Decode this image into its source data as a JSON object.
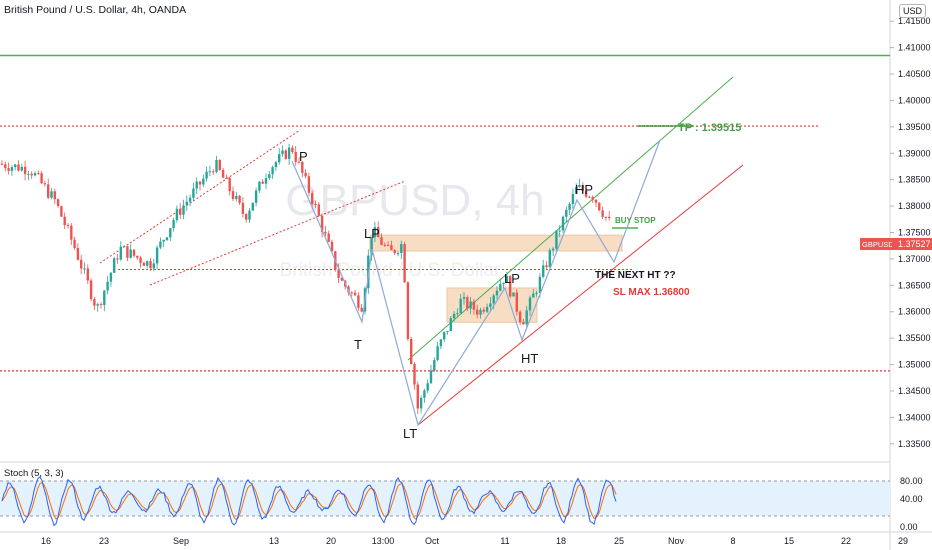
{
  "header": {
    "title": "British Pound / U.S. Dollar, 4h, OANDA",
    "currency": "USD",
    "watermark_symbol": "GBPUSD, 4h",
    "watermark_name": "British Pound / U.S. Dollar"
  },
  "price_axis": {
    "labels": [
      "1.41500",
      "1.41000",
      "1.40500",
      "1.40000",
      "1.39500",
      "1.39000",
      "1.38500",
      "1.38000",
      "1.37500",
      "1.37000",
      "1.36500",
      "1.36000",
      "1.35500",
      "1.35000",
      "1.34500",
      "1.34000",
      "1.33500"
    ],
    "last_price": "1.37527",
    "last_symbol": "GBPUSD"
  },
  "time_axis": {
    "labels": [
      "16",
      "23",
      "Sep",
      "13",
      "20",
      "13:00",
      "Oct",
      "11",
      "18",
      "25",
      "Nov",
      "8",
      "15",
      "22",
      "29"
    ]
  },
  "annotations": {
    "P": "P",
    "T": "T",
    "LP1": "LP",
    "LT": "LT",
    "LP2": "LP",
    "HT": "HT",
    "HP": "HP",
    "tp": "TP : 1.39515",
    "buy_stop": "BUY STOP",
    "next_ht": "THE NEXT HT ??",
    "sl": "SL MAX 1.36800"
  },
  "stoch": {
    "title": "Stoch (5, 3, 3)",
    "labels": [
      "80.00",
      "40.00",
      "0.00"
    ]
  },
  "colors": {
    "up": "#26a69a",
    "down": "#ef5350",
    "green_line": "#4caf50",
    "red_dotted": "#e53935",
    "blue_path": "#90a8d8",
    "zone_fill": "#f5d5b5",
    "stoch_k": "#2962ff",
    "stoch_d": "#ff6d00",
    "stoch_band": "#e3f2fd"
  },
  "chart_data": {
    "type": "candlestick",
    "title": "British Pound / U.S. Dollar, 4h, OANDA",
    "ylim": [
      1.3325,
      1.4175
    ],
    "y_ticks": [
      1.415,
      1.41,
      1.405,
      1.4,
      1.395,
      1.39,
      1.385,
      1.38,
      1.375,
      1.37,
      1.365,
      1.36,
      1.355,
      1.35,
      1.345,
      1.34,
      1.335
    ],
    "last_price": 1.37527,
    "key_levels": [
      {
        "label": "TP : 1.39515",
        "value": 1.39515
      },
      {
        "label": "SL MAX 1.36800",
        "value": 1.368
      },
      {
        "value": 1.4085
      },
      {
        "value": 1.3488
      }
    ],
    "swing_points": [
      {
        "label": "P",
        "date": "Sep 14",
        "value": 1.391
      },
      {
        "label": "T",
        "date": "Sep 21",
        "value": 1.3612
      },
      {
        "label": "LP",
        "date": "Sep 22",
        "value": 1.3755
      },
      {
        "label": "LT",
        "date": "Sep 29",
        "value": 1.3415
      },
      {
        "label": "LP",
        "date": "Oct 13",
        "value": 1.3668
      },
      {
        "label": "HT",
        "date": "Oct 15",
        "value": 1.3575
      },
      {
        "label": "HP",
        "date": "Oct 20",
        "value": 1.3835
      }
    ],
    "zones": [
      {
        "from": 1.3715,
        "to": 1.3745
      },
      {
        "from": 1.358,
        "to": 1.3645
      }
    ],
    "indicator": {
      "name": "Stoch (5, 3, 3)",
      "levels": [
        80,
        20
      ],
      "ylim": [
        0,
        100
      ]
    }
  }
}
